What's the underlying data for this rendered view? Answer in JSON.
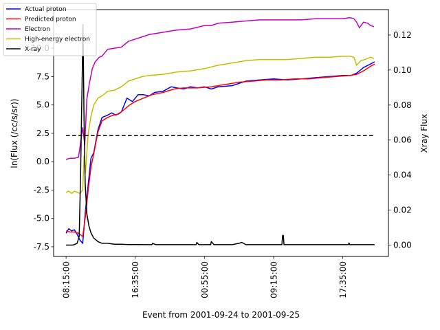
{
  "chart_data": {
    "type": "line",
    "xlabel": "Event from 2001-09-24 to 2001-09-25",
    "ylabel_left": "ln(Flux (/cc/s/sr))",
    "ylabel_right": "Xray Flux",
    "x_tick_labels": [
      "08:15:00",
      "16:35:00",
      "00:55:00",
      "09:15:00",
      "17:35:00"
    ],
    "x_tick_minutes": [
      0,
      500,
      1000,
      1500,
      2000
    ],
    "xlim_minutes": [
      -90,
      2330
    ],
    "ylim_left": [
      -8.35,
      13.4
    ],
    "ylim_right": [
      -0.0065,
      0.1345
    ],
    "y_ticks_left": [
      -7.5,
      -5.0,
      -2.5,
      0.0,
      2.5,
      5.0,
      7.5,
      10.0
    ],
    "y_ticks_right": [
      0.0,
      0.02,
      0.04,
      0.06,
      0.08,
      0.1,
      0.12
    ],
    "threshold": {
      "y": 2.3,
      "style": "dashed",
      "color": "#000000"
    },
    "legend": {
      "placement": "top-left"
    },
    "series": [
      {
        "name": "Actual proton",
        "color": "#0000ff",
        "axis": "left",
        "x": [
          0,
          20,
          40,
          60,
          80,
          100,
          120,
          140,
          160,
          180,
          200,
          230,
          260,
          300,
          330,
          360,
          400,
          440,
          480,
          520,
          560,
          600,
          640,
          700,
          760,
          800,
          850,
          900,
          950,
          1000,
          1050,
          1100,
          1200,
          1300,
          1400,
          1500,
          1600,
          1700,
          1800,
          1900,
          2000,
          2060,
          2100,
          2150,
          2200,
          2230
        ],
        "values": [
          -6.3,
          -5.9,
          -6.1,
          -6.0,
          -6.4,
          -6.9,
          -7.2,
          -4.3,
          -2.0,
          0.3,
          0.8,
          2.8,
          3.9,
          4.1,
          4.3,
          4.1,
          4.4,
          5.6,
          5.3,
          5.9,
          5.9,
          5.8,
          6.1,
          6.2,
          6.6,
          6.5,
          6.4,
          6.6,
          6.5,
          6.6,
          6.4,
          6.6,
          6.7,
          7.1,
          7.2,
          7.3,
          7.2,
          7.3,
          7.4,
          7.5,
          7.6,
          7.6,
          7.8,
          8.3,
          8.6,
          8.8
        ]
      },
      {
        "name": "Predicted proton",
        "color": "#ff0000",
        "axis": "left",
        "x": [
          0,
          30,
          60,
          90,
          120,
          140,
          160,
          180,
          200,
          230,
          260,
          300,
          340,
          380,
          420,
          460,
          500,
          560,
          620,
          700,
          780,
          850,
          950,
          1050,
          1150,
          1250,
          1350,
          1450,
          1550,
          1650,
          1750,
          1850,
          1950,
          2050,
          2100,
          2150,
          2200,
          2230
        ],
        "values": [
          -6.1,
          -6.2,
          -6.2,
          -6.3,
          -6.6,
          -4.8,
          -2.5,
          -0.5,
          0.7,
          2.6,
          3.6,
          3.9,
          4.1,
          4.2,
          4.6,
          5.0,
          5.3,
          5.6,
          5.9,
          6.1,
          6.4,
          6.5,
          6.5,
          6.6,
          6.8,
          7.0,
          7.1,
          7.2,
          7.2,
          7.3,
          7.3,
          7.4,
          7.5,
          7.6,
          7.7,
          8.0,
          8.4,
          8.6
        ]
      },
      {
        "name": "Electron",
        "color": "#bf00bf",
        "axis": "left",
        "x": [
          0,
          30,
          60,
          90,
          120,
          135,
          150,
          170,
          190,
          210,
          240,
          260,
          300,
          350,
          400,
          450,
          500,
          550,
          600,
          700,
          800,
          900,
          1000,
          1050,
          1100,
          1200,
          1300,
          1400,
          1500,
          1600,
          1700,
          1800,
          1900,
          2000,
          2050,
          2080,
          2100,
          2120,
          2150,
          2180,
          2200,
          2225
        ],
        "values": [
          0.2,
          0.3,
          0.3,
          0.4,
          3.0,
          1.5,
          5.5,
          7.0,
          8.2,
          8.8,
          9.2,
          9.3,
          9.9,
          10.0,
          10.1,
          10.6,
          10.8,
          11.0,
          11.2,
          11.4,
          11.6,
          11.7,
          12.0,
          12.0,
          12.2,
          12.3,
          12.4,
          12.5,
          12.5,
          12.5,
          12.5,
          12.6,
          12.6,
          12.6,
          12.7,
          12.6,
          12.3,
          11.8,
          12.3,
          12.2,
          12.0,
          11.9
        ]
      },
      {
        "name": "High-energy electron",
        "color": "#bfbf00",
        "axis": "left",
        "x": [
          0,
          20,
          40,
          60,
          80,
          100,
          120,
          130,
          140,
          160,
          180,
          200,
          230,
          260,
          300,
          350,
          400,
          450,
          500,
          550,
          600,
          700,
          800,
          900,
          1000,
          1100,
          1200,
          1300,
          1400,
          1500,
          1600,
          1700,
          1800,
          1900,
          2000,
          2050,
          2080,
          2100,
          2130,
          2160,
          2200,
          2225
        ],
        "values": [
          -2.7,
          -2.6,
          -2.8,
          -2.6,
          -2.7,
          -2.8,
          -2.5,
          0.5,
          -1.0,
          2.5,
          4.0,
          5.0,
          5.6,
          5.8,
          6.2,
          6.3,
          6.6,
          7.1,
          7.3,
          7.5,
          7.6,
          7.7,
          7.9,
          8.0,
          8.2,
          8.5,
          8.7,
          8.9,
          9.0,
          9.0,
          9.0,
          9.1,
          9.2,
          9.2,
          9.3,
          9.3,
          9.2,
          8.5,
          8.9,
          9.0,
          9.2,
          9.1
        ]
      },
      {
        "name": "X-ray",
        "color": "#000000",
        "axis": "right",
        "x": [
          0,
          50,
          80,
          95,
          105,
          115,
          122,
          130,
          138,
          150,
          165,
          180,
          200,
          230,
          260,
          300,
          350,
          400,
          450,
          500,
          600,
          620,
          625,
          650,
          900,
          940,
          945,
          960,
          1030,
          1045,
          1050,
          1070,
          1200,
          1250,
          1270,
          1300,
          1500,
          1560,
          1565,
          1570,
          1575,
          1600,
          2000,
          2040,
          2045,
          2050,
          2230
        ],
        "values": [
          0.0,
          0.0,
          0.001,
          0.005,
          0.04,
          0.09,
          0.126,
          0.07,
          0.035,
          0.018,
          0.011,
          0.007,
          0.004,
          0.002,
          0.001,
          0.001,
          0.0005,
          0.0005,
          0.0003,
          0.0003,
          0.0002,
          0.0002,
          0.001,
          0.0002,
          0.0002,
          0.0002,
          0.0015,
          0.0002,
          0.0002,
          0.0002,
          0.002,
          0.0002,
          0.0002,
          0.001,
          0.0015,
          0.0002,
          0.0002,
          0.0002,
          0.0055,
          0.0055,
          0.0002,
          0.0002,
          0.0002,
          0.0002,
          0.0012,
          0.0002,
          0.0002
        ]
      }
    ]
  }
}
